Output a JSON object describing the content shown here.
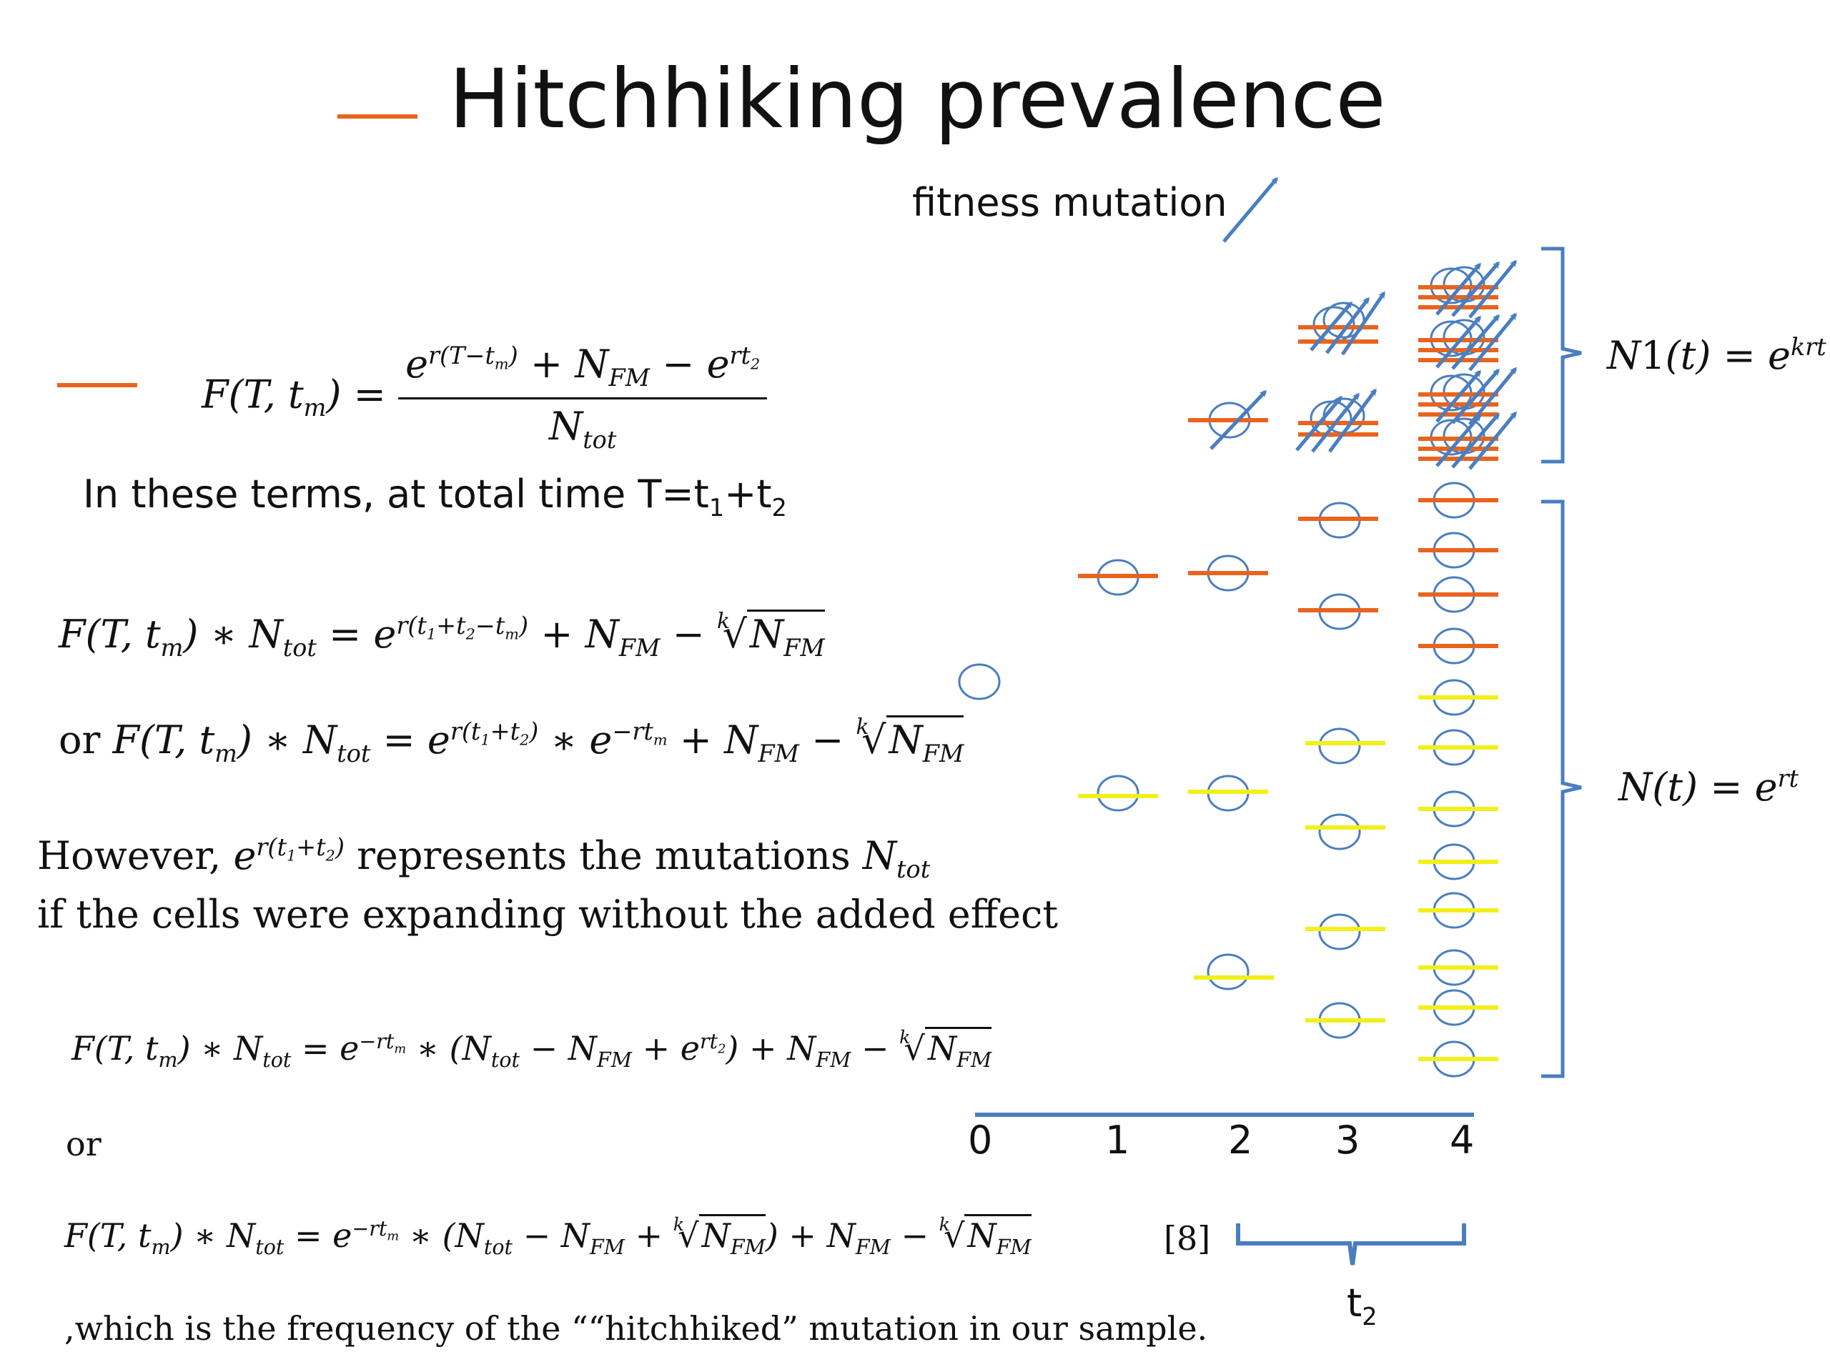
{
  "slide": {
    "title": "Hitchhiking prevalence",
    "fitness_label": "fitness mutation",
    "terms_text": "In these terms, at total time T=t",
    "terms_sub1": "1",
    "terms_plus": "+t",
    "terms_sub2": "2",
    "however_a": "However, ",
    "however_b": " represents the mutations ",
    "however_line2": "if the cells were expanding without the added effect",
    "or_label": "or",
    "or_prefix": "or ",
    "ref": "[8]",
    "closing": ",which is the frequency of the ““hitchhiked” mutation in our sample.",
    "n1_label": "N1(t) = e^krt",
    "n_label": "N(t) = e^rt",
    "t2_label": "t",
    "t2_sub": "2"
  },
  "axis": {
    "ticks": [
      "0",
      "1",
      "2",
      "3",
      "4"
    ]
  },
  "colors": {
    "orange": "#e8641e",
    "yellow": "#f2ef1a",
    "blue": "#4a7ebf"
  }
}
